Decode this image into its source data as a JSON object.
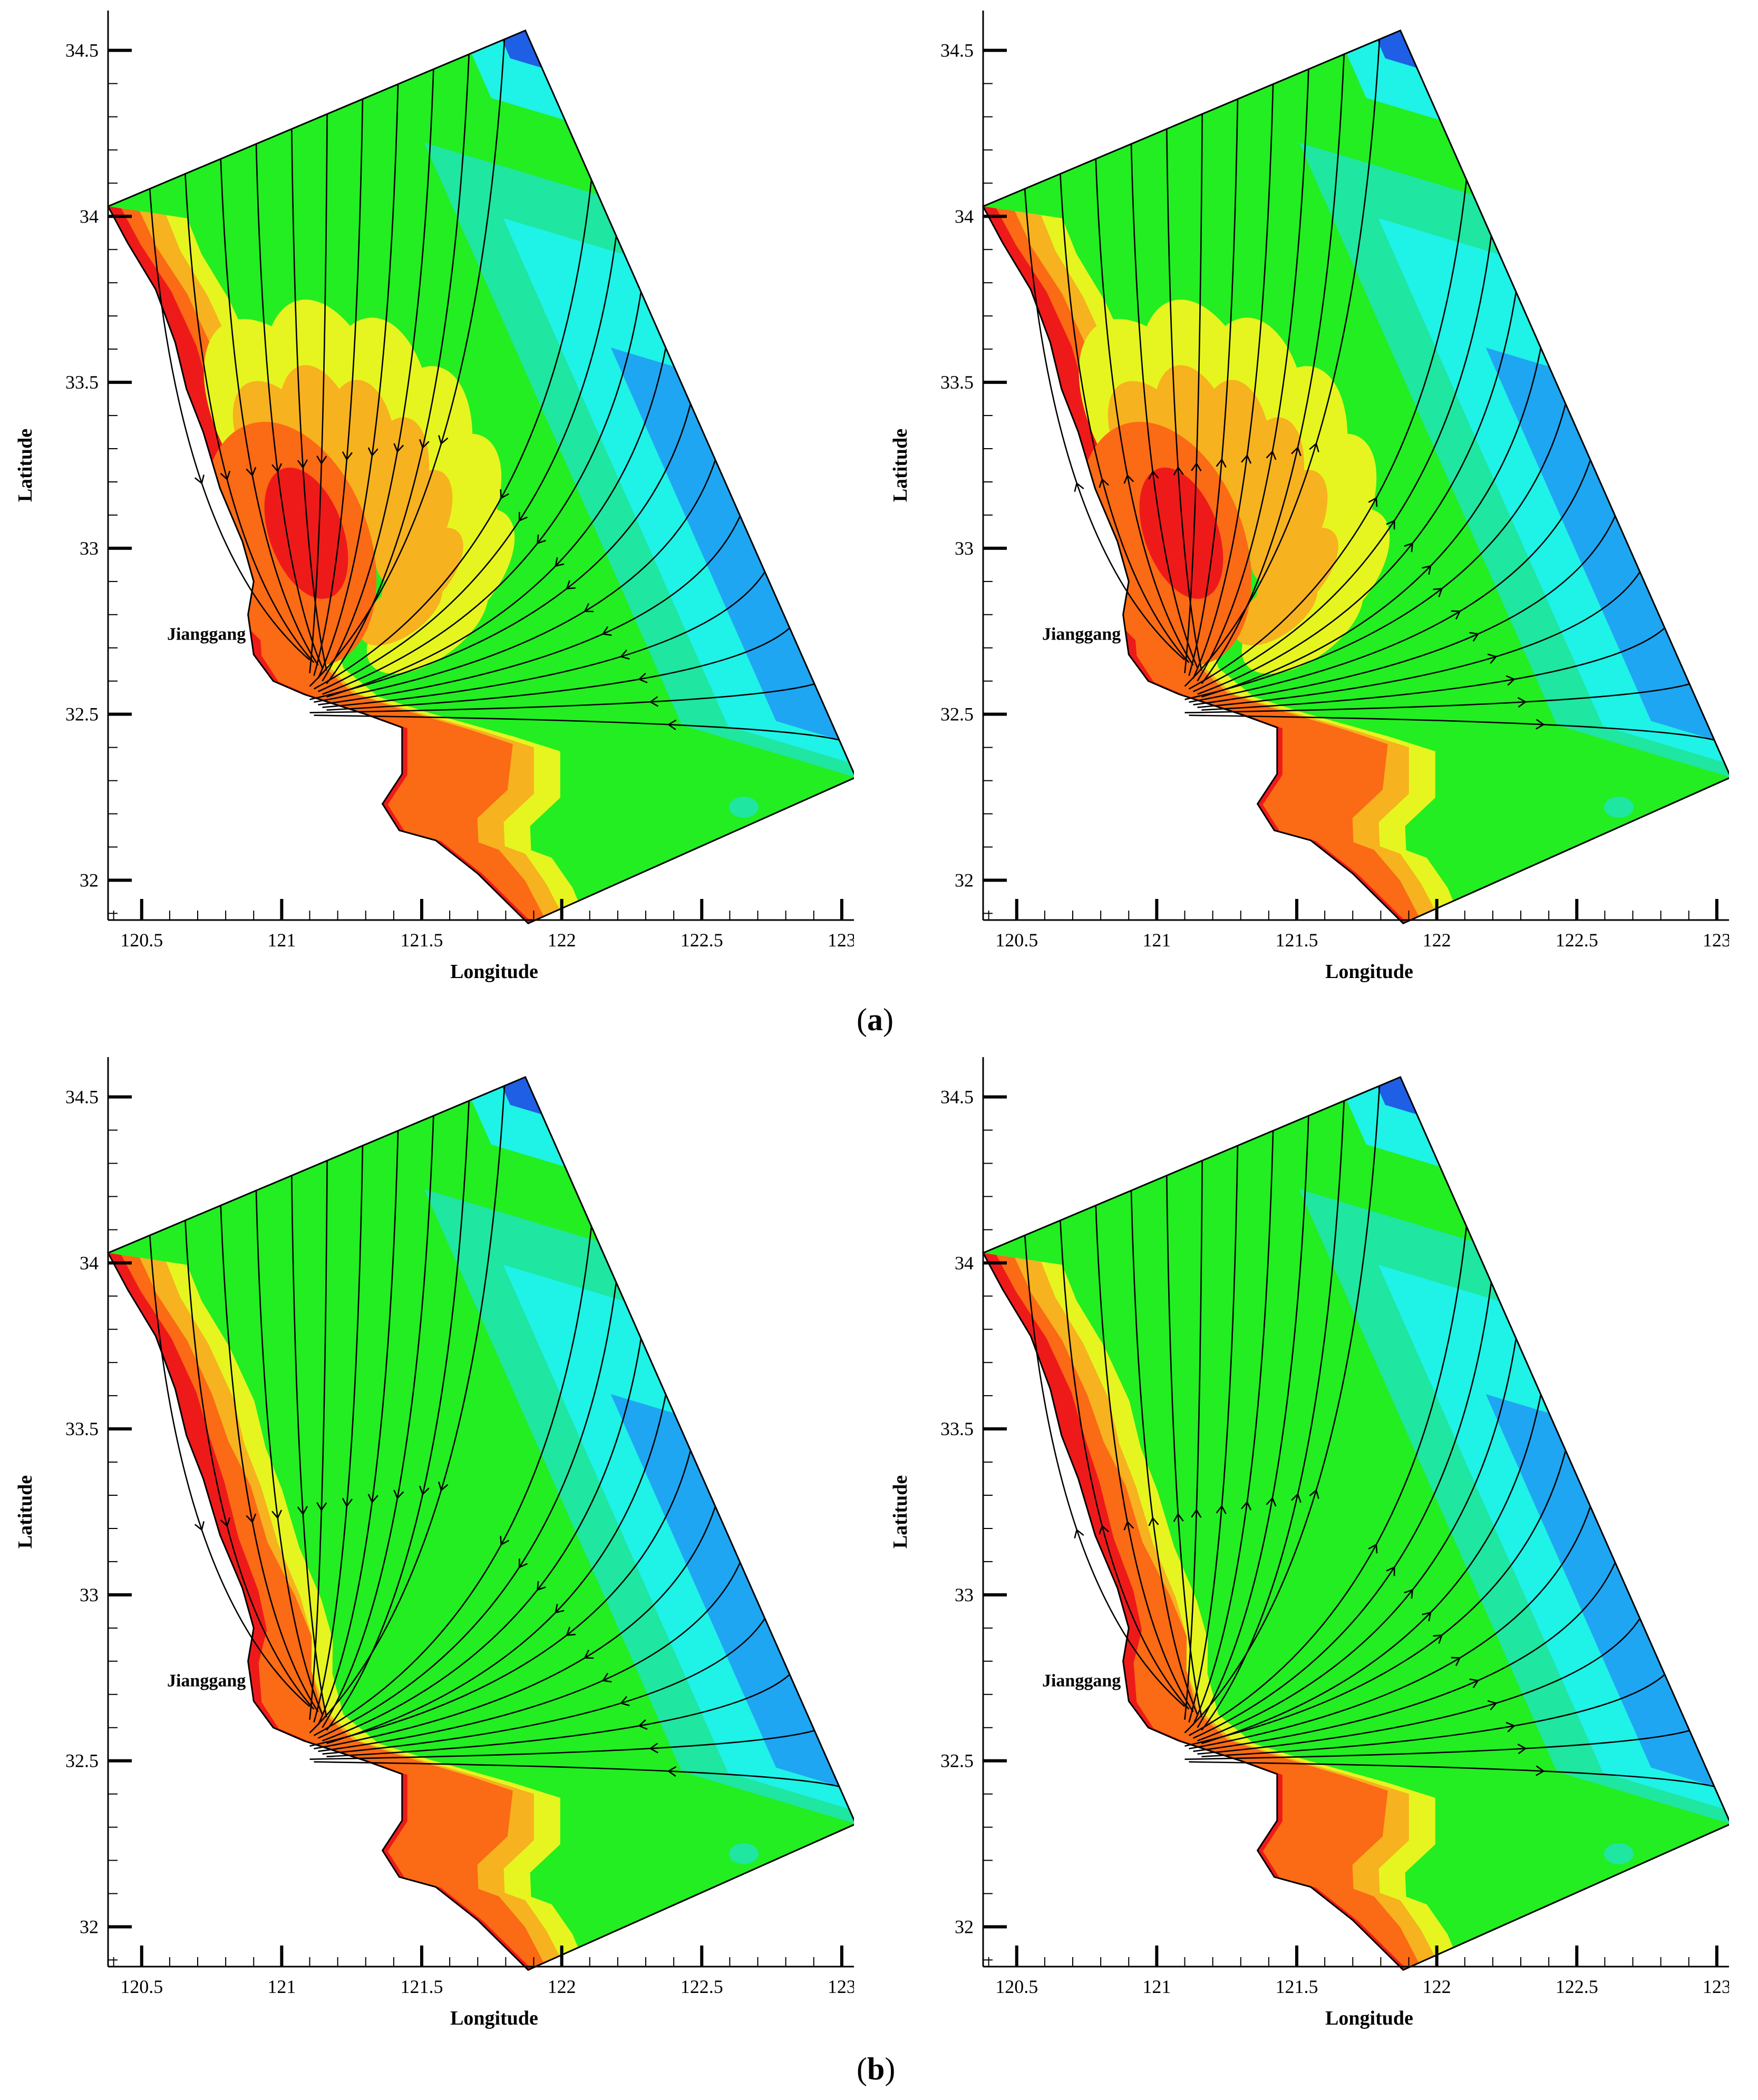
{
  "figure": {
    "captions": [
      {
        "open": "(",
        "letter": "a",
        "close": ")"
      },
      {
        "open": "(",
        "letter": "b",
        "close": ")"
      }
    ],
    "x_axis_title": "Longitude",
    "y_axis_title": "Latitude",
    "x_ticks": [
      "120.5",
      "121",
      "121.5",
      "122",
      "122.5",
      "123"
    ],
    "y_ticks": [
      "32",
      "32.5",
      "33",
      "33.5",
      "34",
      "34.5"
    ],
    "place_label": "Jianggang",
    "colors": {
      "deep_blue": "#1f5fe6",
      "blue": "#1fa6f2",
      "cyan": "#1ff2e6",
      "aqua_green": "#1fe6a0",
      "green": "#22ee22",
      "yellow": "#e6f51f",
      "light_orange": "#f7b21f",
      "orange": "#fb6a14",
      "red": "#ee1a1a",
      "streamline": "#000000"
    }
  },
  "map_data": {
    "type": "contour map with streamlines",
    "x_range": [
      120.38,
      123.1
    ],
    "y_range": [
      31.88,
      34.62
    ],
    "domain_corners": [
      [
        120.38,
        34.03
      ],
      [
        121.87,
        34.56
      ],
      [
        123.05,
        32.31
      ],
      [
        121.88,
        31.87
      ]
    ],
    "place_markers": [
      {
        "name": "Jianggang",
        "lon": 120.9,
        "lat": 32.74
      }
    ],
    "panels": [
      {
        "id": "a-left",
        "flow": "convergent",
        "shoal": "extensive"
      },
      {
        "id": "a-right",
        "flow": "divergent",
        "shoal": "extensive"
      },
      {
        "id": "b-left",
        "flow": "convergent",
        "shoal": "coastal"
      },
      {
        "id": "b-right",
        "flow": "divergent",
        "shoal": "coastal"
      }
    ]
  }
}
